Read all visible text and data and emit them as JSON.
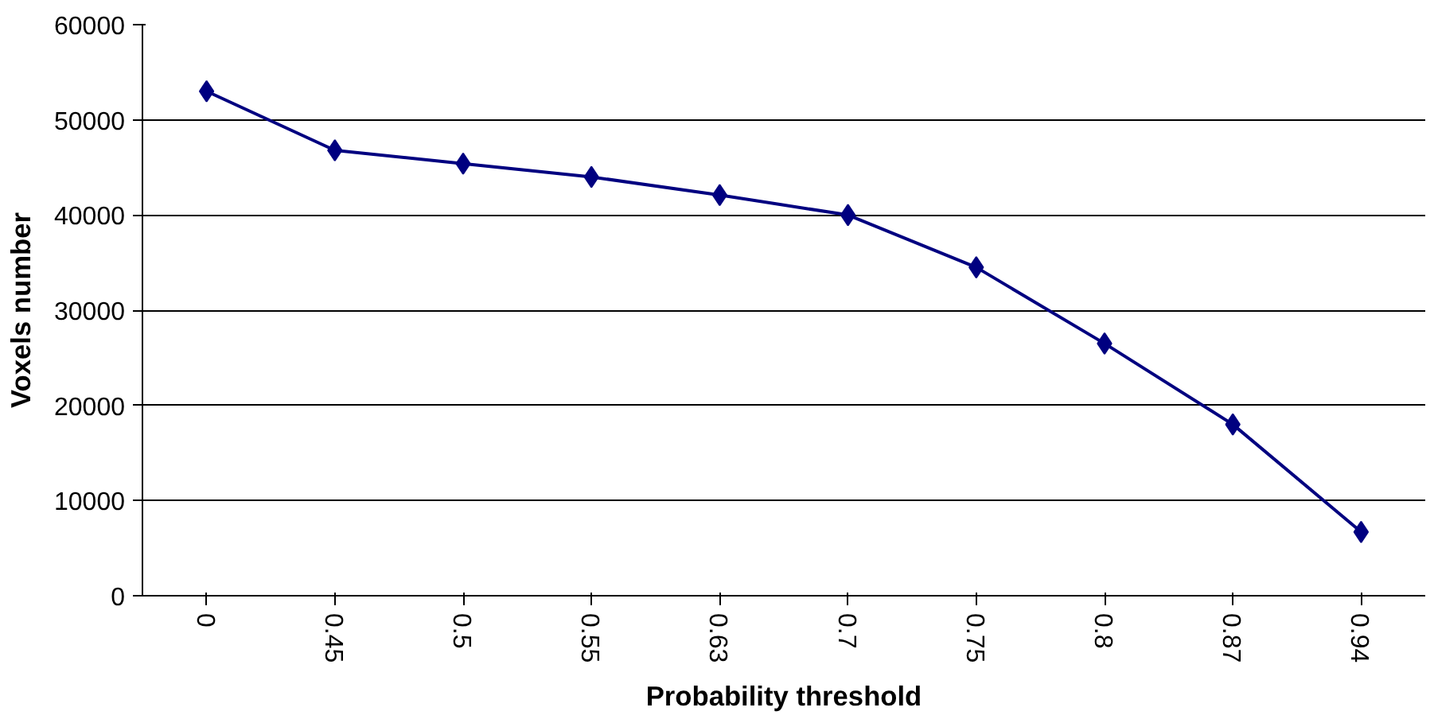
{
  "chart_data": {
    "type": "line",
    "xlabel": "Probability threshold",
    "ylabel": "Voxels number",
    "categories": [
      "0",
      "0.45",
      "0.5",
      "0.55",
      "0.63",
      "0.7",
      "0.75",
      "0.8",
      "0.87",
      "0.94"
    ],
    "series": [
      {
        "color": "#000080",
        "values": [
          53000,
          46800,
          45400,
          44000,
          42100,
          40000,
          34500,
          26500,
          18000,
          6700
        ]
      }
    ],
    "ylim": [
      0,
      60000
    ],
    "yticks": [
      0,
      10000,
      20000,
      30000,
      40000,
      50000,
      60000
    ],
    "grid": "y",
    "marker": "diamond",
    "line_style": "solid"
  }
}
